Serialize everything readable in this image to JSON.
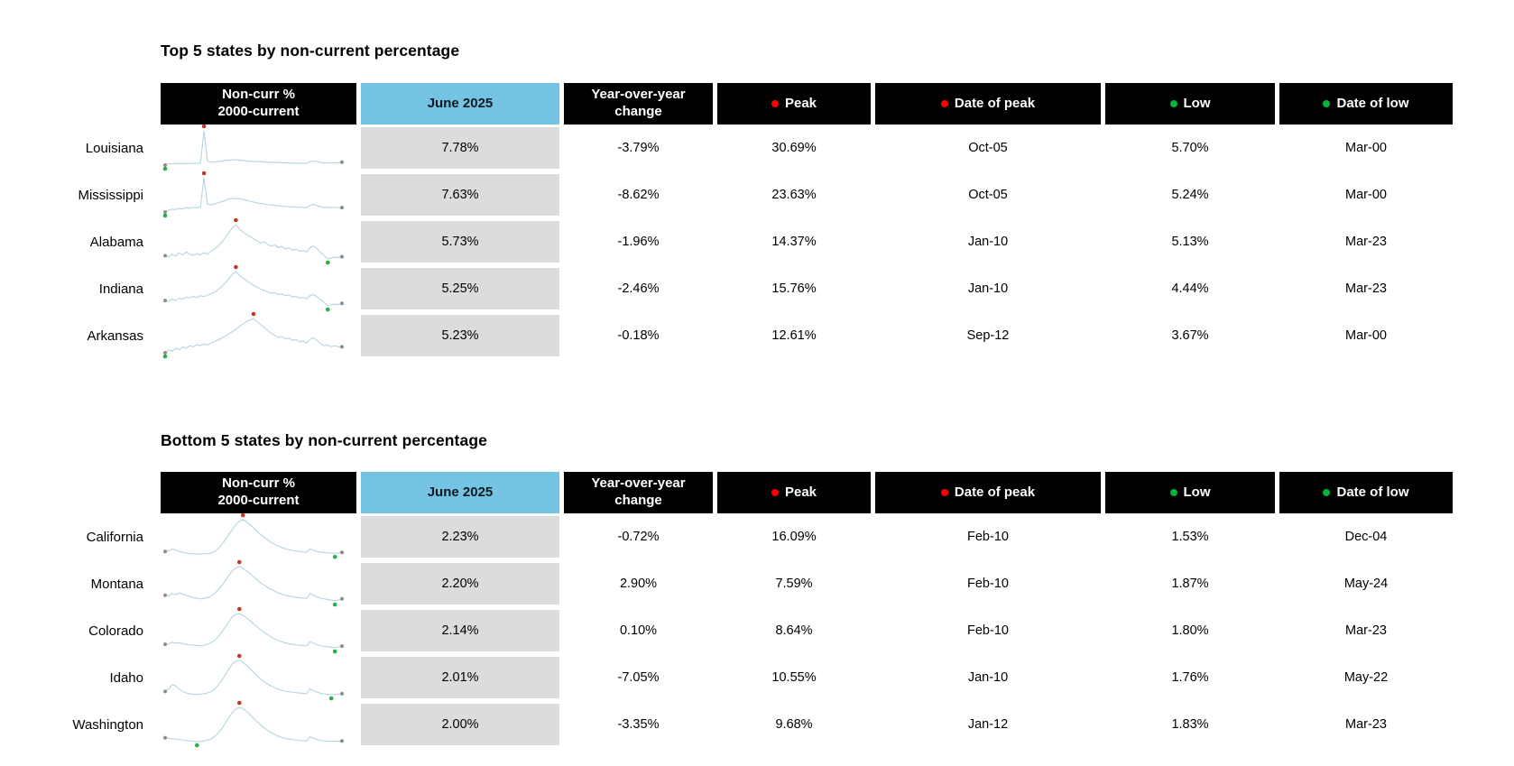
{
  "colors": {
    "background": "#ffffff",
    "text": "#000000",
    "header_black": "#000000",
    "header_blue": "#74c3e2",
    "header_text_light": "#ffffff",
    "june_cell_gray": "#dcdcdc",
    "peak_red": "#ff0000",
    "low_green": "#00b43c",
    "spark_line": "#b9d8e4",
    "spark_peak": "#c0392b",
    "spark_low": "#27ae45",
    "spark_end": "#8c8c8c"
  },
  "chart_data": [
    {
      "type": "table",
      "title": "Top 5 states by non-current percentage",
      "headers": {
        "noncurr_line1": "Non-curr %",
        "noncurr_line2": "2000-current",
        "june": "June 2025",
        "yoy_line1": "Year-over-year",
        "yoy_line2": "change",
        "peak": "Peak",
        "date_of_peak": "Date of peak",
        "low": "Low",
        "date_of_low": "Date of low"
      },
      "rows": [
        {
          "state": "Louisiana",
          "june": "7.78%",
          "yoy": "-3.79%",
          "peak": "30.69%",
          "peak_date": "Oct-05",
          "low": "5.70%",
          "low_date": "Mar-00",
          "spark": {
            "peak_i": 11,
            "low_i": 0,
            "values": [
              5.7,
              6.8,
              6.5,
              7.0,
              6.6,
              6.9,
              6.7,
              7.1,
              6.8,
              7.0,
              7.2,
              30.69,
              8.5,
              7.8,
              8.0,
              8.3,
              8.6,
              9.0,
              9.3,
              9.5,
              9.6,
              9.3,
              9.0,
              8.8,
              8.6,
              8.4,
              8.2,
              8.3,
              8.0,
              7.8,
              7.9,
              7.6,
              7.7,
              7.4,
              7.5,
              7.2,
              7.3,
              7.0,
              7.1,
              6.9,
              7.0,
              8.3,
              8.6,
              8.2,
              7.6,
              7.3,
              7.5,
              7.2,
              7.6,
              7.4,
              7.78
            ]
          }
        },
        {
          "state": "Mississippi",
          "june": "7.63%",
          "yoy": "-8.62%",
          "peak": "23.63%",
          "peak_date": "Oct-05",
          "low": "5.24%",
          "low_date": "Mar-00",
          "spark": {
            "peak_i": 11,
            "low_i": 0,
            "values": [
              5.24,
              6.2,
              6.8,
              6.5,
              7.2,
              6.9,
              7.5,
              7.2,
              7.8,
              7.5,
              8.0,
              23.63,
              9.5,
              9.0,
              9.6,
              10.2,
              10.8,
              11.5,
              12.2,
              12.6,
              12.3,
              12.5,
              12.0,
              11.5,
              11.0,
              10.6,
              10.2,
              9.8,
              9.5,
              9.2,
              9.0,
              8.8,
              8.6,
              8.4,
              8.3,
              8.1,
              8.0,
              7.9,
              7.8,
              7.7,
              7.6,
              8.8,
              9.2,
              8.6,
              8.0,
              7.7,
              7.9,
              7.6,
              7.8,
              7.5,
              7.63
            ]
          }
        },
        {
          "state": "Alabama",
          "june": "5.73%",
          "yoy": "-1.96%",
          "peak": "14.37%",
          "peak_date": "Jan-10",
          "low": "5.13%",
          "low_date": "Mar-23",
          "spark": {
            "peak_i": 20,
            "low_i": 46,
            "values": [
              6.0,
              5.7,
              6.4,
              5.9,
              6.8,
              6.2,
              7.0,
              6.4,
              6.1,
              6.6,
              6.2,
              6.8,
              6.4,
              7.2,
              7.8,
              8.6,
              9.6,
              10.8,
              12.2,
              13.5,
              14.37,
              13.2,
              12.4,
              11.8,
              11.2,
              10.5,
              10.0,
              9.4,
              9.8,
              9.0,
              8.6,
              8.9,
              8.2,
              8.5,
              7.8,
              8.1,
              7.5,
              7.8,
              7.2,
              7.4,
              7.0,
              8.2,
              8.6,
              7.8,
              6.8,
              6.0,
              5.13,
              5.4,
              5.6,
              5.5,
              5.73
            ]
          }
        },
        {
          "state": "Indiana",
          "june": "5.25%",
          "yoy": "-2.46%",
          "peak": "15.76%",
          "peak_date": "Jan-10",
          "low": "4.44%",
          "low_date": "Mar-23",
          "spark": {
            "peak_i": 20,
            "low_i": 46,
            "values": [
              6.2,
              5.9,
              6.6,
              6.2,
              7.0,
              6.6,
              7.4,
              7.0,
              7.6,
              7.2,
              7.8,
              7.5,
              8.0,
              8.4,
              9.0,
              9.8,
              10.8,
              12.0,
              13.4,
              14.8,
              15.76,
              14.6,
              13.6,
              12.8,
              12.0,
              11.2,
              10.6,
              10.0,
              9.5,
              9.0,
              8.6,
              8.8,
              8.2,
              8.4,
              7.8,
              8.0,
              7.4,
              7.6,
              7.0,
              7.2,
              6.8,
              7.8,
              8.2,
              7.4,
              6.4,
              5.6,
              4.44,
              4.8,
              5.0,
              4.9,
              5.25
            ]
          }
        },
        {
          "state": "Arkansas",
          "june": "5.23%",
          "yoy": "-0.18%",
          "peak": "12.61%",
          "peak_date": "Sep-12",
          "low": "3.67%",
          "low_date": "Mar-00",
          "spark": {
            "peak_i": 25,
            "low_i": 0,
            "values": [
              3.67,
              4.4,
              4.1,
              4.8,
              4.5,
              5.2,
              4.9,
              5.5,
              5.2,
              5.8,
              5.5,
              6.0,
              5.7,
              6.2,
              6.6,
              7.0,
              7.5,
              8.0,
              8.6,
              9.2,
              9.8,
              10.5,
              11.2,
              11.8,
              12.3,
              12.61,
              11.8,
              11.0,
              10.2,
              9.5,
              8.8,
              8.2,
              7.7,
              7.9,
              7.3,
              7.5,
              6.9,
              7.1,
              6.5,
              6.7,
              6.2,
              7.2,
              7.6,
              6.8,
              6.0,
              5.5,
              5.7,
              5.3,
              5.5,
              5.2,
              5.23
            ]
          }
        }
      ]
    },
    {
      "type": "table",
      "title": "Bottom 5 states by non-current percentage",
      "headers": {
        "noncurr_line1": "Non-curr %",
        "noncurr_line2": "2000-current",
        "june": "June 2025",
        "yoy_line1": "Year-over-year",
        "yoy_line2": "change",
        "peak": "Peak",
        "date_of_peak": "Date of peak",
        "low": "Low",
        "date_of_low": "Date of low"
      },
      "rows": [
        {
          "state": "California",
          "june": "2.23%",
          "yoy": "-0.72%",
          "peak": "16.09%",
          "peak_date": "Feb-10",
          "low": "1.53%",
          "low_date": "Dec-04",
          "spark": {
            "peak_i": 22,
            "low_i": 48,
            "values": [
              2.6,
              2.9,
              3.6,
              3.2,
              2.6,
              2.2,
              1.9,
              1.7,
              1.6,
              1.53,
              1.55,
              1.6,
              1.65,
              1.9,
              2.6,
              3.8,
              5.5,
              7.5,
              9.8,
              12.0,
              14.0,
              15.4,
              16.09,
              15.2,
              14.0,
              12.6,
              11.2,
              9.8,
              8.6,
              7.5,
              6.5,
              5.6,
              4.8,
              4.2,
              3.7,
              3.3,
              3.0,
              2.8,
              2.6,
              2.4,
              2.3,
              3.6,
              3.1,
              2.6,
              2.3,
              2.1,
              2.0,
              1.9,
              1.85,
              2.0,
              2.23
            ]
          }
        },
        {
          "state": "Montana",
          "june": "2.20%",
          "yoy": "2.90%",
          "peak": "7.59%",
          "peak_date": "Feb-10",
          "low": "1.87%",
          "low_date": "May-24",
          "spark": {
            "peak_i": 21,
            "low_i": 48,
            "values": [
              2.8,
              2.7,
              3.1,
              2.9,
              3.2,
              3.0,
              2.8,
              2.6,
              2.4,
              2.3,
              2.2,
              2.3,
              2.4,
              2.7,
              3.1,
              3.7,
              4.4,
              5.2,
              6.1,
              6.9,
              7.4,
              7.59,
              7.3,
              6.9,
              6.4,
              5.9,
              5.4,
              4.9,
              4.5,
              4.1,
              3.8,
              3.5,
              3.2,
              3.0,
              2.8,
              2.7,
              2.6,
              2.5,
              2.4,
              2.35,
              2.3,
              3.1,
              2.8,
              2.5,
              2.3,
              2.2,
              2.1,
              2.0,
              1.87,
              2.0,
              2.2
            ]
          }
        },
        {
          "state": "Colorado",
          "june": "2.14%",
          "yoy": "0.10%",
          "peak": "8.64%",
          "peak_date": "Feb-10",
          "low": "1.80%",
          "low_date": "Mar-23",
          "spark": {
            "peak_i": 21,
            "low_i": 48,
            "values": [
              2.5,
              2.6,
              2.9,
              2.7,
              2.8,
              2.6,
              2.5,
              2.4,
              2.3,
              2.25,
              2.2,
              2.3,
              2.5,
              2.8,
              3.3,
              4.0,
              4.9,
              5.9,
              7.0,
              8.0,
              8.5,
              8.64,
              8.3,
              7.8,
              7.2,
              6.6,
              6.0,
              5.4,
              4.9,
              4.4,
              4.0,
              3.6,
              3.3,
              3.0,
              2.8,
              2.6,
              2.5,
              2.4,
              2.3,
              2.25,
              2.2,
              3.0,
              2.7,
              2.4,
              2.2,
              2.1,
              2.0,
              1.9,
              1.8,
              2.0,
              2.14
            ]
          }
        },
        {
          "state": "Idaho",
          "june": "2.01%",
          "yoy": "-7.05%",
          "peak": "10.55%",
          "peak_date": "Jan-10",
          "low": "1.76%",
          "low_date": "May-22",
          "spark": {
            "peak_i": 21,
            "low_i": 47,
            "values": [
              2.6,
              3.2,
              4.4,
              4.0,
              3.2,
              2.6,
              2.2,
              2.0,
              1.9,
              1.85,
              1.9,
              2.0,
              2.2,
              2.6,
              3.2,
              4.2,
              5.4,
              6.8,
              8.3,
              9.6,
              10.3,
              10.55,
              10.1,
              9.3,
              8.4,
              7.5,
              6.6,
              5.8,
              5.1,
              4.5,
              4.0,
              3.6,
              3.2,
              2.9,
              2.7,
              2.5,
              2.4,
              2.3,
              2.2,
              2.1,
              2.05,
              3.3,
              2.8,
              2.4,
              2.1,
              1.95,
              1.85,
              1.76,
              1.8,
              1.9,
              2.01
            ]
          }
        },
        {
          "state": "Washington",
          "june": "2.00%",
          "yoy": "-3.35%",
          "peak": "9.68%",
          "peak_date": "Jan-12",
          "low": "1.83%",
          "low_date": "Mar-23",
          "spark": {
            "peak_i": 21,
            "low_i": 9,
            "values": [
              2.7,
              2.6,
              2.5,
              2.4,
              2.3,
              2.2,
              2.1,
              2.0,
              1.9,
              1.83,
              1.9,
              2.0,
              2.2,
              2.5,
              3.0,
              3.8,
              4.8,
              6.0,
              7.3,
              8.5,
              9.3,
              9.68,
              9.4,
              8.8,
              8.0,
              7.2,
              6.4,
              5.7,
              5.0,
              4.4,
              3.9,
              3.5,
              3.1,
              2.8,
              2.6,
              2.4,
              2.3,
              2.2,
              2.1,
              2.05,
              2.0,
              2.9,
              2.6,
              2.3,
              2.1,
              2.0,
              1.95,
              1.9,
              1.95,
              1.9,
              2.0
            ]
          }
        }
      ]
    }
  ]
}
